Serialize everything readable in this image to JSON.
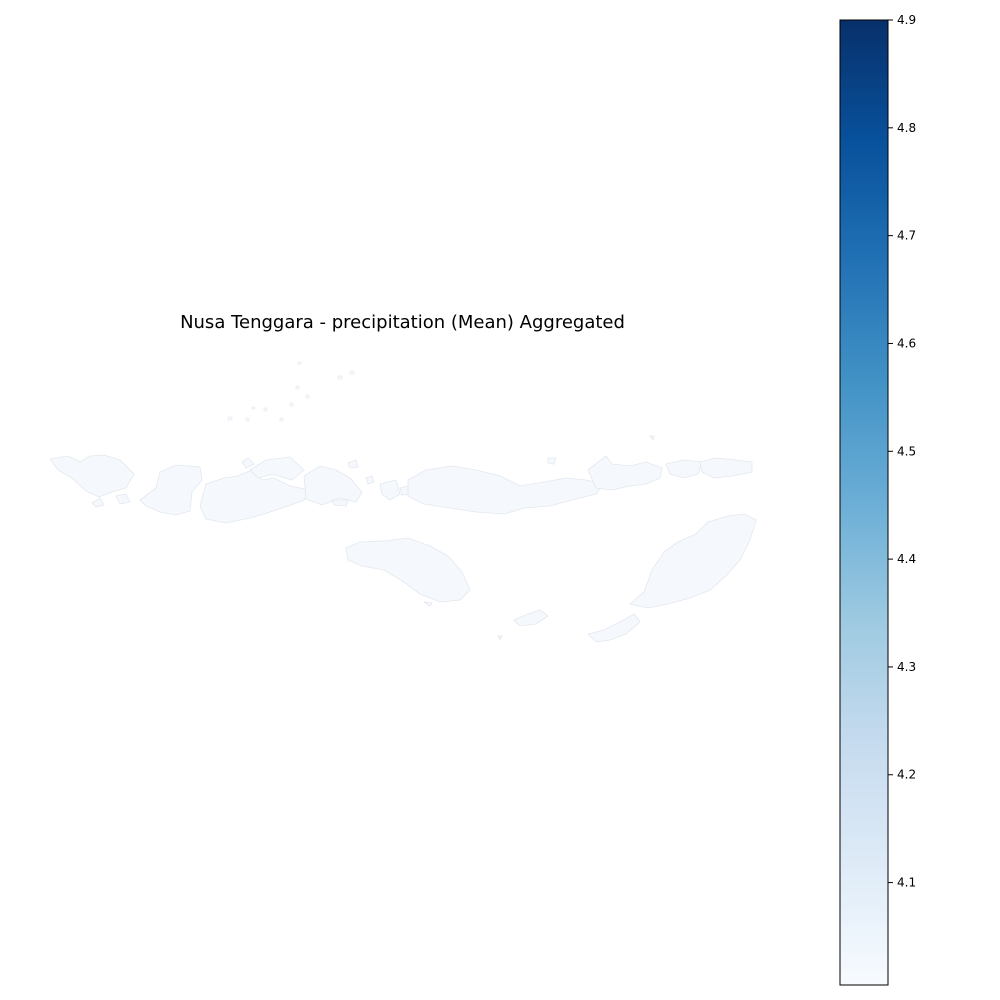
{
  "chart_data": {
    "type": "choropleth-map",
    "title": "Nusa Tenggara - precipitation (Mean) Aggregated",
    "variable": "precipitation",
    "statistic": "Mean",
    "region": "Nusa Tenggara",
    "colormap": "Blues",
    "colorbar": {
      "orientation": "vertical",
      "placement": "right",
      "range": [
        4.005,
        4.9
      ],
      "ticks": [
        4.1,
        4.2,
        4.3,
        4.4,
        4.5,
        4.6,
        4.7,
        4.8,
        4.9
      ],
      "tick_labels": [
        "4.1",
        "4.2",
        "4.3",
        "4.4",
        "4.5",
        "4.6",
        "4.7",
        "4.8",
        "4.9"
      ],
      "colors": {
        "low": "#f7fbff",
        "high": "#08306b"
      }
    },
    "region_fill_color": "#f5f9fe",
    "region_edge_color": "#e3e8ee",
    "axes": "off"
  }
}
